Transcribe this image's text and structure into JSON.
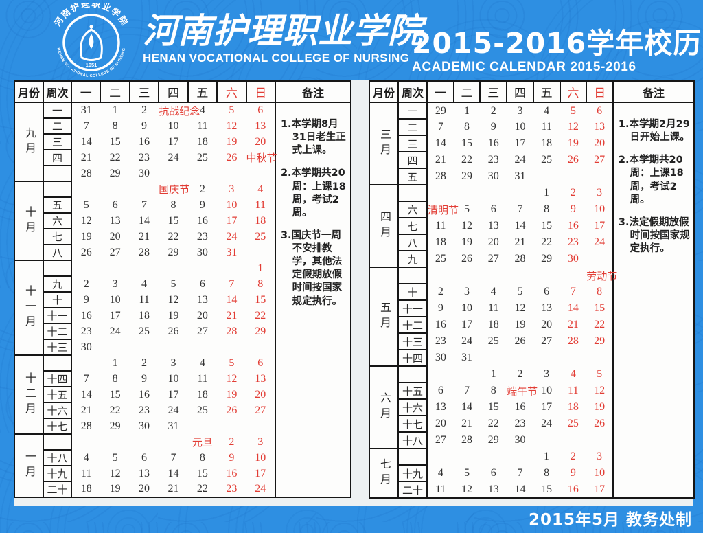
{
  "header": {
    "college_cn": "河南护理职业学院",
    "college_en": "HENAN VOCATIONAL COLLEGE OF NURSING",
    "title_cn": "2015-2016学年校历",
    "title_en": "ACADEMIC CALENDAR 2015-2016",
    "logo_cn": "河南护理职业学院",
    "logo_en": "HENAN VOCATIONAL COLLEGE OF NURSING",
    "logo_founded": "1951"
  },
  "footer": {
    "credit": "2015年5月  教务处制"
  },
  "colors": {
    "background_blue": "#2e8fe2",
    "accent_red": "#e23d35",
    "table_ink": "#161616",
    "table_paper": "#fdfdfc"
  },
  "calendar": {
    "columns": {
      "month": "月份",
      "week": "周次",
      "days": [
        "一",
        "二",
        "三",
        "四",
        "五",
        "六",
        "日"
      ],
      "notes": "备注"
    },
    "semesters": [
      {
        "id": "fall",
        "months": [
          {
            "label": "九月",
            "weeks": [
              {
                "num": "一",
                "days": [
                  "31",
                  "1",
                  "2",
                  "抗战纪念",
                  "4",
                  "5",
                  "6"
                ]
              },
              {
                "num": "二",
                "days": [
                  "7",
                  "8",
                  "9",
                  "10",
                  "11",
                  "12",
                  "13"
                ]
              },
              {
                "num": "三",
                "days": [
                  "14",
                  "15",
                  "16",
                  "17",
                  "18",
                  "19",
                  "20"
                ]
              },
              {
                "num": "四",
                "days": [
                  "21",
                  "22",
                  "23",
                  "24",
                  "25",
                  "26",
                  "中秋节"
                ]
              },
              {
                "num": "",
                "days": [
                  "28",
                  "29",
                  "30",
                  "",
                  "",
                  "",
                  ""
                ]
              }
            ]
          },
          {
            "label": "十月",
            "weeks": [
              {
                "num": "",
                "days": [
                  "",
                  "",
                  "",
                  "国庆节",
                  "2",
                  "3",
                  "4"
                ]
              },
              {
                "num": "五",
                "days": [
                  "5",
                  "6",
                  "7",
                  "8",
                  "9",
                  "10",
                  "11"
                ]
              },
              {
                "num": "六",
                "days": [
                  "12",
                  "13",
                  "14",
                  "15",
                  "16",
                  "17",
                  "18"
                ]
              },
              {
                "num": "七",
                "days": [
                  "19",
                  "20",
                  "21",
                  "22",
                  "23",
                  "24",
                  "25"
                ]
              },
              {
                "num": "八",
                "days": [
                  "26",
                  "27",
                  "28",
                  "29",
                  "30",
                  "31",
                  ""
                ]
              }
            ]
          },
          {
            "label": "十一月",
            "weeks": [
              {
                "num": "",
                "days": [
                  "",
                  "",
                  "",
                  "",
                  "",
                  "",
                  "1"
                ]
              },
              {
                "num": "九",
                "days": [
                  "2",
                  "3",
                  "4",
                  "5",
                  "6",
                  "7",
                  "8"
                ]
              },
              {
                "num": "十",
                "days": [
                  "9",
                  "10",
                  "11",
                  "12",
                  "13",
                  "14",
                  "15"
                ]
              },
              {
                "num": "十一",
                "days": [
                  "16",
                  "17",
                  "18",
                  "19",
                  "20",
                  "21",
                  "22"
                ]
              },
              {
                "num": "十二",
                "days": [
                  "23",
                  "24",
                  "25",
                  "26",
                  "27",
                  "28",
                  "29"
                ]
              },
              {
                "num": "十三",
                "days": [
                  "30",
                  "",
                  "",
                  "",
                  "",
                  "",
                  ""
                ]
              }
            ]
          },
          {
            "label": "十二月",
            "weeks": [
              {
                "num": "",
                "days": [
                  "",
                  "1",
                  "2",
                  "3",
                  "4",
                  "5",
                  "6"
                ]
              },
              {
                "num": "十四",
                "days": [
                  "7",
                  "8",
                  "9",
                  "10",
                  "11",
                  "12",
                  "13"
                ]
              },
              {
                "num": "十五",
                "days": [
                  "14",
                  "15",
                  "16",
                  "17",
                  "18",
                  "19",
                  "20"
                ]
              },
              {
                "num": "十六",
                "days": [
                  "21",
                  "22",
                  "23",
                  "24",
                  "25",
                  "26",
                  "27"
                ]
              },
              {
                "num": "十七",
                "days": [
                  "28",
                  "29",
                  "30",
                  "31",
                  "",
                  "",
                  ""
                ]
              }
            ]
          },
          {
            "label": "一月",
            "weeks": [
              {
                "num": "",
                "days": [
                  "",
                  "",
                  "",
                  "",
                  "元旦",
                  "2",
                  "3"
                ]
              },
              {
                "num": "十八",
                "days": [
                  "4",
                  "5",
                  "6",
                  "7",
                  "8",
                  "9",
                  "10"
                ]
              },
              {
                "num": "十九",
                "days": [
                  "11",
                  "12",
                  "13",
                  "14",
                  "15",
                  "16",
                  "17"
                ]
              },
              {
                "num": "二十",
                "days": [
                  "18",
                  "19",
                  "20",
                  "21",
                  "22",
                  "23",
                  "24"
                ]
              }
            ]
          }
        ],
        "notes": [
          "1.本学期8月31日老生正式上课。",
          "2.本学期共20周：上课18周，考试2周。",
          "3.国庆节一周不安排教学，其他法定假期放假时间按国家规定执行。"
        ]
      },
      {
        "id": "spring",
        "months": [
          {
            "label": "三月",
            "weeks": [
              {
                "num": "一",
                "days": [
                  "29",
                  "1",
                  "2",
                  "3",
                  "4",
                  "5",
                  "6"
                ]
              },
              {
                "num": "二",
                "days": [
                  "7",
                  "8",
                  "9",
                  "10",
                  "11",
                  "12",
                  "13"
                ]
              },
              {
                "num": "三",
                "days": [
                  "14",
                  "15",
                  "16",
                  "17",
                  "18",
                  "19",
                  "20"
                ]
              },
              {
                "num": "四",
                "days": [
                  "21",
                  "22",
                  "23",
                  "24",
                  "25",
                  "26",
                  "27"
                ]
              },
              {
                "num": "五",
                "days": [
                  "28",
                  "29",
                  "30",
                  "31",
                  "",
                  "",
                  ""
                ]
              }
            ]
          },
          {
            "label": "四月",
            "weeks": [
              {
                "num": "",
                "days": [
                  "",
                  "",
                  "",
                  "",
                  "1",
                  "2",
                  "3"
                ]
              },
              {
                "num": "六",
                "days": [
                  "清明节",
                  "5",
                  "6",
                  "7",
                  "8",
                  "9",
                  "10"
                ]
              },
              {
                "num": "七",
                "days": [
                  "11",
                  "12",
                  "13",
                  "14",
                  "15",
                  "16",
                  "17"
                ]
              },
              {
                "num": "八",
                "days": [
                  "18",
                  "19",
                  "20",
                  "21",
                  "22",
                  "23",
                  "24"
                ]
              },
              {
                "num": "九",
                "days": [
                  "25",
                  "26",
                  "27",
                  "28",
                  "29",
                  "30",
                  ""
                ]
              }
            ]
          },
          {
            "label": "五月",
            "weeks": [
              {
                "num": "",
                "days": [
                  "",
                  "",
                  "",
                  "",
                  "",
                  "",
                  "劳动节"
                ]
              },
              {
                "num": "十",
                "days": [
                  "2",
                  "3",
                  "4",
                  "5",
                  "6",
                  "7",
                  "8"
                ]
              },
              {
                "num": "十一",
                "days": [
                  "9",
                  "10",
                  "11",
                  "12",
                  "13",
                  "14",
                  "15"
                ]
              },
              {
                "num": "十二",
                "days": [
                  "16",
                  "17",
                  "18",
                  "19",
                  "20",
                  "21",
                  "22"
                ]
              },
              {
                "num": "十三",
                "days": [
                  "23",
                  "24",
                  "25",
                  "26",
                  "27",
                  "28",
                  "29"
                ]
              },
              {
                "num": "十四",
                "days": [
                  "30",
                  "31",
                  "",
                  "",
                  "",
                  "",
                  ""
                ]
              }
            ]
          },
          {
            "label": "六月",
            "weeks": [
              {
                "num": "",
                "days": [
                  "",
                  "",
                  "1",
                  "2",
                  "3",
                  "4",
                  "5"
                ]
              },
              {
                "num": "十五",
                "days": [
                  "6",
                  "7",
                  "8",
                  "端午节",
                  "10",
                  "11",
                  "12"
                ]
              },
              {
                "num": "十六",
                "days": [
                  "13",
                  "14",
                  "15",
                  "16",
                  "17",
                  "18",
                  "19"
                ]
              },
              {
                "num": "十七",
                "days": [
                  "20",
                  "21",
                  "22",
                  "23",
                  "24",
                  "25",
                  "26"
                ]
              },
              {
                "num": "十八",
                "days": [
                  "27",
                  "28",
                  "29",
                  "30",
                  "",
                  "",
                  ""
                ]
              }
            ]
          },
          {
            "label": "七月",
            "weeks": [
              {
                "num": "",
                "days": [
                  "",
                  "",
                  "",
                  "",
                  "1",
                  "2",
                  "3"
                ]
              },
              {
                "num": "十九",
                "days": [
                  "4",
                  "5",
                  "6",
                  "7",
                  "8",
                  "9",
                  "10"
                ]
              },
              {
                "num": "二十",
                "days": [
                  "11",
                  "12",
                  "13",
                  "14",
                  "15",
                  "16",
                  "17"
                ]
              }
            ]
          }
        ],
        "notes": [
          "1.本学期2月29日开始上课。",
          "2.本学期共20周：上课18周，考试2周。",
          "3.法定假期放假时间按国家规定执行。"
        ]
      }
    ]
  }
}
